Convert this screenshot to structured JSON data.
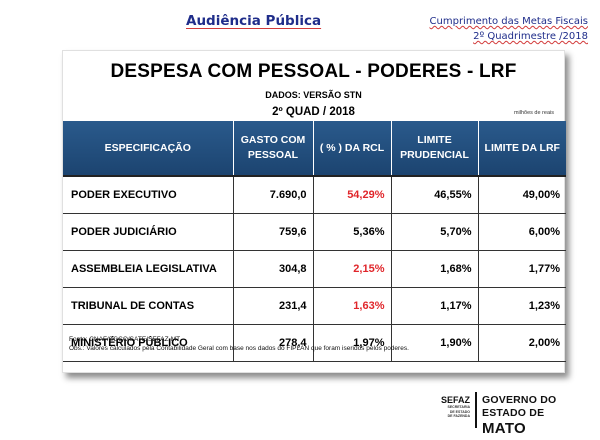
{
  "header": {
    "left_title": "Audiência Pública",
    "right_line1": "Cumprimento das Metas Fiscais",
    "right_line2": "2º Quadrimestre /2018"
  },
  "panel": {
    "title": "DESPESA COM PESSOAL - PODERES - LRF",
    "data_source": "DADOS: VERSÃO STN",
    "period": "2º QUAD / 2018",
    "units": "milhões de reais"
  },
  "table": {
    "headers": [
      "ESPECIFICAÇÃO",
      "GASTO COM PESSOAL",
      "( % ) DA RCL",
      "LIMITE PRUDENCIAL",
      "LIMITE DA LRF"
    ],
    "rows": [
      {
        "name": "PODER EXECUTIVO",
        "spending": "7.690,0",
        "rcl_pct": "54,29%",
        "prudential": "46,55%",
        "lrf_limit": "49,00%",
        "rcl_highlight": "#e0262b"
      },
      {
        "name": "PODER JUDICIÁRIO",
        "spending": "759,6",
        "rcl_pct": "5,36%",
        "prudential": "5,70%",
        "lrf_limit": "6,00%",
        "rcl_highlight": "#000000"
      },
      {
        "name": "ASSEMBLEIA LEGISLATIVA",
        "spending": "304,8",
        "rcl_pct": "2,15%",
        "prudential": "1,68%",
        "lrf_limit": "1,77%",
        "rcl_highlight": "#e0262b"
      },
      {
        "name": "TRIBUNAL DE CONTAS",
        "spending": "231,4",
        "rcl_pct": "1,63%",
        "prudential": "1,17%",
        "lrf_limit": "1,23%",
        "rcl_highlight": "#e0262b"
      },
      {
        "name": "MINISTÉRIO PÚBLICO",
        "spending": "278,4",
        "rcl_pct": "1,97%",
        "prudential": "1,90%",
        "lrf_limit": "2,00%",
        "rcl_highlight": "#000000"
      }
    ]
  },
  "footnotes": {
    "source": "Fonte: CNAF/SGCO/SATE/SEFAZ-MT",
    "obs": "Obs.: Valores calculados pela Contabilidade Geral com base nos dados do FIPLAN que foram iseridos pelos poderes."
  },
  "logo": {
    "sefaz": "SEFAZ",
    "sefaz_sub1": "SECRETARIA",
    "sefaz_sub2": "DE ESTADO",
    "sefaz_sub3": "DE FAZENDA",
    "gov_line1": "GOVERNO DO ESTADO DE",
    "gov_line2": "MATO GROSSO"
  },
  "colors": {
    "header_blue": "#1f4e79",
    "title_navy": "#1f2d8a",
    "alert_red": "#e0262b"
  }
}
